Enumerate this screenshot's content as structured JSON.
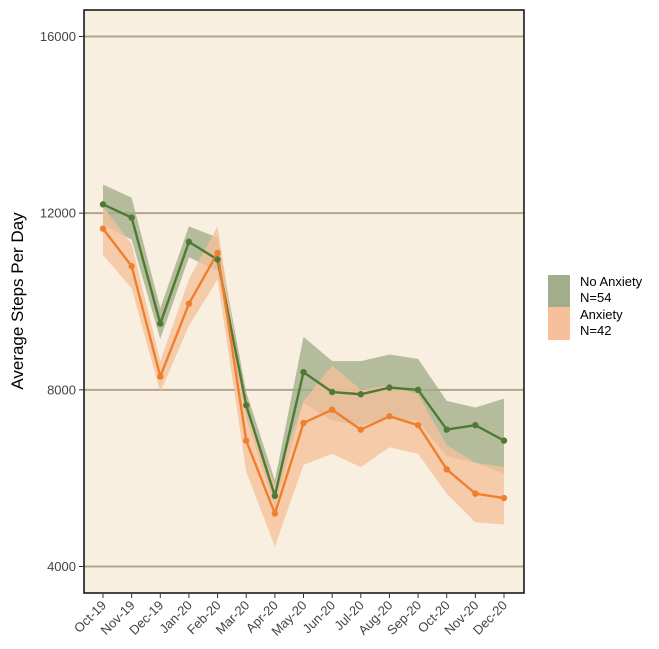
{
  "chart_data": {
    "type": "line",
    "title": "",
    "xlabel": "",
    "ylabel": "Average Steps Per Day",
    "categories": [
      "Oct-19",
      "Nov-19",
      "Dec-19",
      "Jan-20",
      "Feb-20",
      "Mar-20",
      "Apr-20",
      "May-20",
      "Jun-20",
      "Jul-20",
      "Aug-20",
      "Sep-20",
      "Oct-20",
      "Nov-20",
      "Dec-20"
    ],
    "ylim": [
      3400,
      16600
    ],
    "yticks": [
      4000,
      8000,
      12000,
      16000
    ],
    "ytick_labels": [
      "4000",
      "8000",
      "12000",
      "16000"
    ],
    "grid": "horizontal major gridlines",
    "legend_position": "right",
    "background_color": "#f8efe0",
    "series": [
      {
        "name": "No Anxiety",
        "n_label": "N=54",
        "color": "#4f7a35",
        "band_color": "#a2ad89",
        "values": [
          12200,
          11900,
          9500,
          11350,
          10950,
          7650,
          5600,
          8400,
          7950,
          7900,
          8050,
          8000,
          7100,
          7200,
          6850
        ],
        "lower": [
          11750,
          11400,
          9150,
          11000,
          10700,
          7350,
          5350,
          7700,
          7300,
          7200,
          7350,
          7300,
          6500,
          6350,
          6100
        ],
        "upper": [
          12650,
          12350,
          9850,
          11700,
          11450,
          7950,
          5950,
          9200,
          8650,
          8650,
          8800,
          8700,
          7750,
          7600,
          7800
        ]
      },
      {
        "name": "Anxiety",
        "n_label": "N=42",
        "color": "#ef7f2f",
        "band_color": "#f5c09a",
        "values": [
          11650,
          10800,
          8300,
          9950,
          11100,
          6850,
          5200,
          7250,
          7550,
          7100,
          7400,
          7200,
          6200,
          5650,
          5550
        ],
        "lower": [
          11050,
          10300,
          7950,
          9450,
          10500,
          6150,
          4450,
          6300,
          6550,
          6250,
          6700,
          6550,
          5650,
          5000,
          4950
        ],
        "upper": [
          12150,
          11300,
          8650,
          10500,
          11700,
          7500,
          5850,
          7750,
          8550,
          8000,
          8100,
          7900,
          6750,
          6350,
          6250
        ]
      }
    ]
  }
}
